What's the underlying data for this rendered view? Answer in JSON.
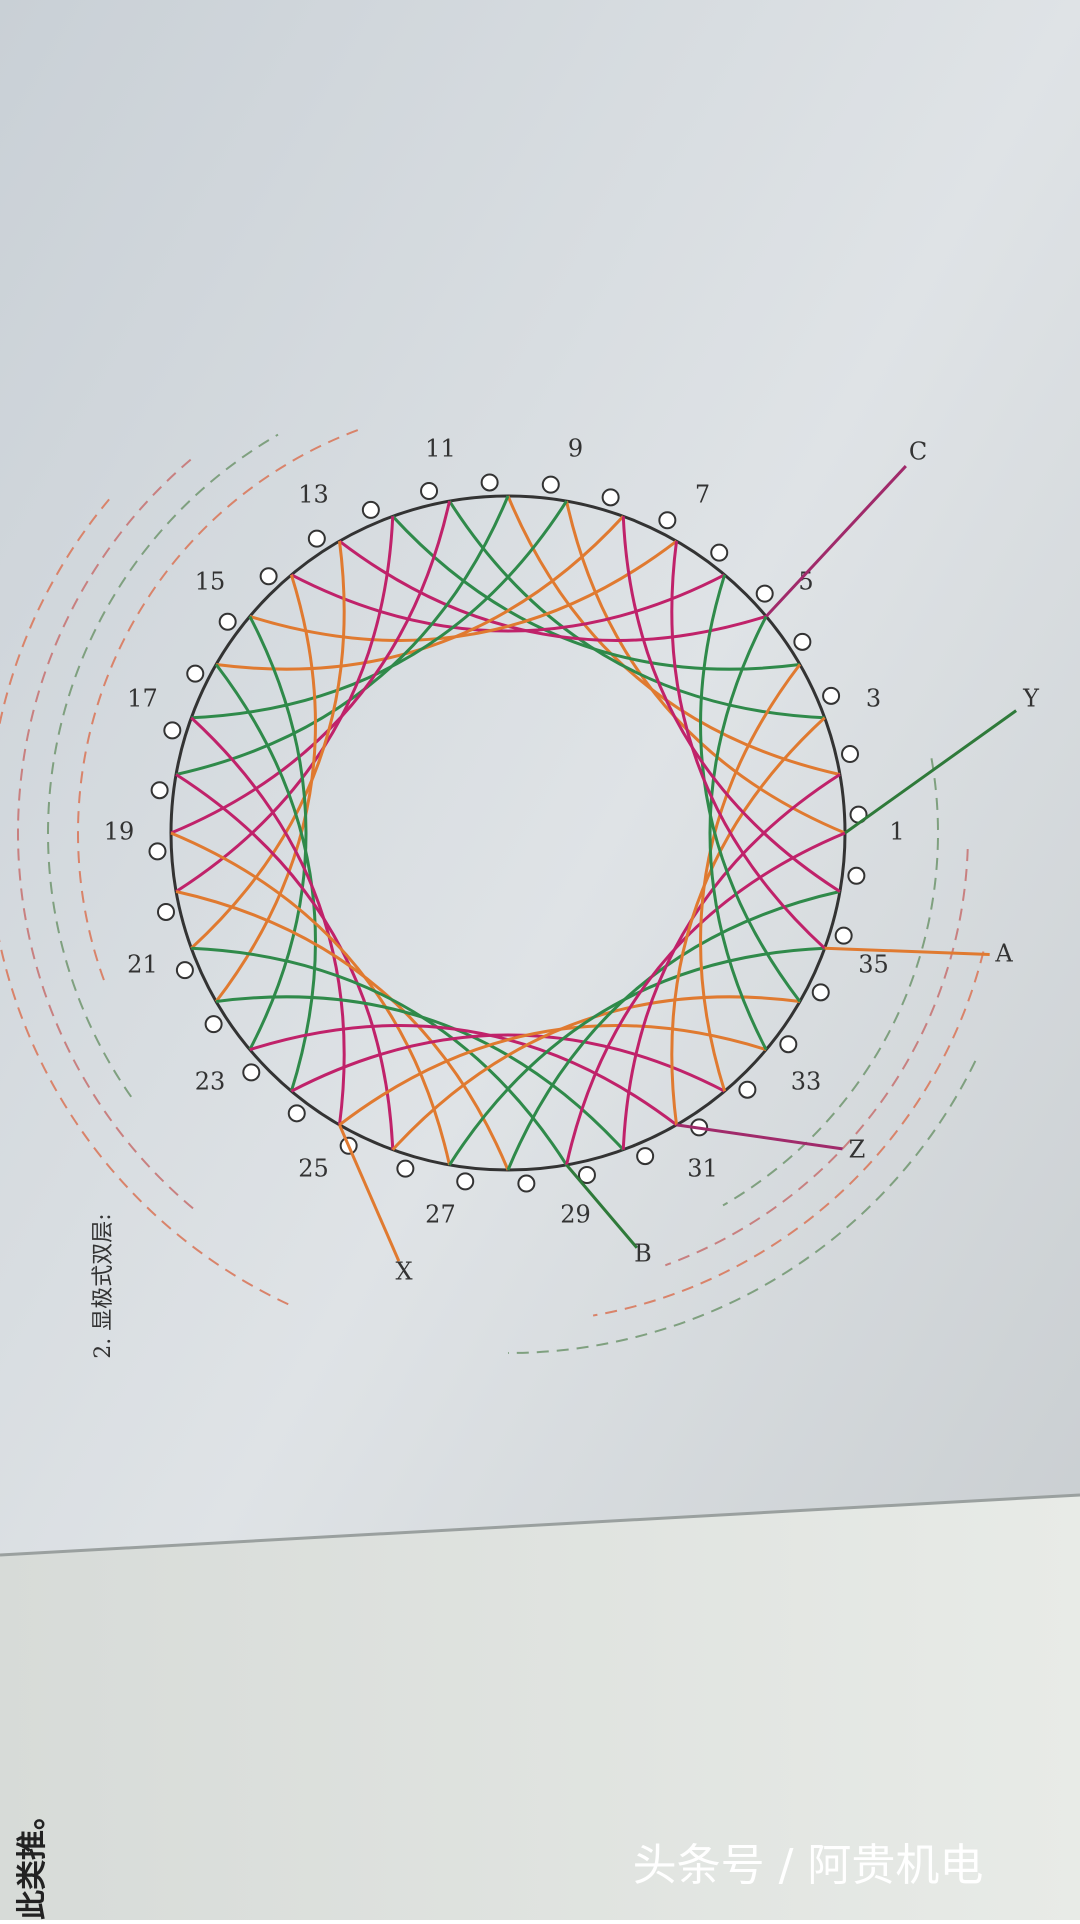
{
  "caption": "2. 显极式双层:",
  "slots": [
    1,
    3,
    5,
    7,
    9,
    11,
    13,
    15,
    17,
    19,
    21,
    23,
    25,
    27,
    29,
    31,
    33,
    35
  ],
  "leads": [
    "C",
    "Y",
    "A",
    "Z",
    "B",
    "X"
  ],
  "footer_text": "此类推。",
  "watermark": "头条号 / 阿贵机电"
}
